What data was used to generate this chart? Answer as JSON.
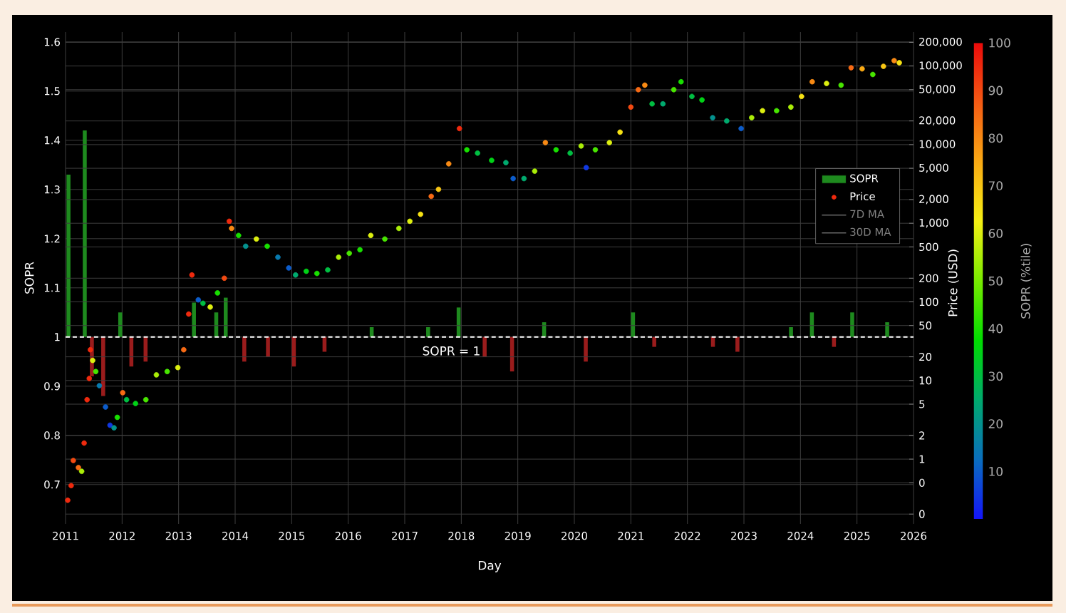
{
  "chart_data": {
    "type": "scatter",
    "xlabel": "Day",
    "ylabel": "SOPR",
    "y2label": "Price (USD)",
    "clabel": "SOPR (%tile)",
    "xlim": [
      "2011-01-01",
      "2026-01-01"
    ],
    "xticks": [
      "2011",
      "2012",
      "2013",
      "2014",
      "2015",
      "2016",
      "2017",
      "2018",
      "2019",
      "2020",
      "2021",
      "2022",
      "2023",
      "2024",
      "2025",
      "2026"
    ],
    "ylim": [
      0.62,
      1.62
    ],
    "yticks": [
      0.7,
      0.8,
      0.9,
      1,
      1.1,
      1.2,
      1.3,
      1.4,
      1.5,
      1.6
    ],
    "log": "y2",
    "y2lim": [
      0.15,
      270000
    ],
    "y2ticks": [
      {
        "value": 0.2,
        "label": "0"
      },
      {
        "value": 0.5,
        "label": "0"
      },
      1,
      2,
      5,
      10,
      20,
      50,
      100,
      200,
      500,
      {
        "value": 1000,
        "label": "1,000"
      },
      {
        "value": 2000,
        "label": "2,000"
      },
      {
        "value": 5000,
        "label": "5,000"
      },
      {
        "value": 10000,
        "label": "10,000"
      },
      {
        "value": 20000,
        "label": "20,000"
      },
      {
        "value": 50000,
        "label": "50,000"
      },
      {
        "value": 100000,
        "label": "100,000"
      },
      {
        "value": 200000,
        "label": "200,000"
      }
    ],
    "clim": [
      0,
      100
    ],
    "cticks": [
      10,
      20,
      30,
      40,
      50,
      60,
      70,
      80,
      90,
      100
    ],
    "grid": true,
    "legend": "right",
    "marker": "circle",
    "ref_lines": [
      {
        "axis": "y",
        "value": 1,
        "label": "SOPR = 1",
        "color": "#ffffff",
        "line_style": "dashed"
      }
    ],
    "series": [
      {
        "name": "SOPR",
        "type": "bar",
        "color": "#1e8a1e",
        "x": [
          "2011-01-20",
          "2011-05-05",
          "2011-06-20",
          "2011-09-01",
          "2011-12-20",
          "2012-03-01",
          "2012-06-01",
          "2013-04-10",
          "2013-09-01",
          "2013-11-01",
          "2014-03-01",
          "2014-08-01",
          "2015-01-15",
          "2015-08-01",
          "2016-06-01",
          "2017-06-01",
          "2017-12-15",
          "2018-06-01",
          "2018-11-25",
          "2019-06-20",
          "2020-03-15",
          "2021-01-15",
          "2021-06-01",
          "2022-06-15",
          "2022-11-20",
          "2023-11-01",
          "2024-03-15",
          "2024-08-05",
          "2024-12-01",
          "2025-07-15"
        ],
        "base": [
          1,
          1,
          1,
          1,
          1,
          1,
          1,
          1,
          1,
          1,
          1,
          1,
          1,
          1,
          1,
          1,
          1,
          1,
          1,
          1,
          1,
          1,
          1,
          1,
          1,
          1,
          1,
          1,
          1,
          1
        ],
        "values": [
          0.33,
          0.42,
          -0.08,
          -0.12,
          0.05,
          -0.06,
          -0.05,
          0.07,
          0.05,
          0.08,
          -0.05,
          -0.04,
          -0.06,
          -0.03,
          0.02,
          0.02,
          0.06,
          -0.04,
          -0.07,
          0.03,
          -0.05,
          0.05,
          -0.02,
          -0.02,
          -0.03,
          0.02,
          0.05,
          -0.02,
          0.05,
          0.03
        ],
        "colors": [
          "#1e8a1e",
          "#1e8a1e",
          "#9a1c1c",
          "#9a1c1c",
          "#1e8a1e",
          "#9a1c1c",
          "#9a1c1c",
          "#1e8a1e",
          "#1e8a1e",
          "#1e8a1e",
          "#9a1c1c",
          "#9a1c1c",
          "#9a1c1c",
          "#9a1c1c",
          "#1e8a1e",
          "#1e8a1e",
          "#1e8a1e",
          "#9a1c1c",
          "#9a1c1c",
          "#1e8a1e",
          "#9a1c1c",
          "#1e8a1e",
          "#9a1c1c",
          "#9a1c1c",
          "#9a1c1c",
          "#1e8a1e",
          "#1e8a1e",
          "#9a1c1c",
          "#1e8a1e",
          "#1e8a1e"
        ]
      },
      {
        "name": "Price",
        "axis": "y2",
        "x": [
          "2011-01-15",
          "2011-02-06",
          "2011-02-20",
          "2011-03-25",
          "2011-04-15",
          "2011-05-01",
          "2011-05-20",
          "2011-06-03",
          "2011-06-10",
          "2011-06-25",
          "2011-07-15",
          "2011-08-07",
          "2011-09-16",
          "2011-10-15",
          "2011-11-10",
          "2011-12-01",
          "2012-01-05",
          "2012-01-30",
          "2012-03-28",
          "2012-06-03",
          "2012-08-10",
          "2012-10-19",
          "2012-12-27",
          "2013-02-03",
          "2013-03-07",
          "2013-03-28",
          "2013-05-08",
          "2013-06-07",
          "2013-07-24",
          "2013-09-09",
          "2013-10-23",
          "2013-11-24",
          "2013-12-09",
          "2014-01-23",
          "2014-03-10",
          "2014-05-18",
          "2014-07-27",
          "2014-10-04",
          "2014-12-13",
          "2015-01-26",
          "2015-04-05",
          "2015-06-13",
          "2015-08-22",
          "2015-10-31",
          "2016-01-08",
          "2016-03-17",
          "2016-05-26",
          "2016-08-25",
          "2016-11-24",
          "2017-02-03",
          "2017-04-13",
          "2017-06-21",
          "2017-08-07",
          "2017-10-12",
          "2017-12-20",
          "2018-02-06",
          "2018-04-16",
          "2018-07-16",
          "2018-10-16",
          "2018-12-02",
          "2019-02-10",
          "2019-04-20",
          "2019-06-28",
          "2019-09-05",
          "2019-12-05",
          "2020-02-14",
          "2020-03-18",
          "2020-05-16",
          "2020-08-15",
          "2020-10-23",
          "2021-01-01",
          "2021-02-18",
          "2021-04-01",
          "2021-05-18",
          "2021-07-27",
          "2021-10-05",
          "2021-11-21",
          "2022-01-30",
          "2022-04-05",
          "2022-06-13",
          "2022-09-12",
          "2022-12-14",
          "2023-02-20",
          "2023-05-01",
          "2023-07-31",
          "2023-10-31",
          "2024-01-08",
          "2024-03-17",
          "2024-06-18",
          "2024-09-20",
          "2024-11-24",
          "2025-02-03",
          "2025-04-13",
          "2025-06-21",
          "2025-08-29",
          "2025-10-01"
        ],
        "values": [
          0.3,
          0.46,
          0.96,
          0.78,
          0.7,
          1.6,
          5.7,
          10.6,
          24.6,
          18,
          13,
          8.6,
          4.6,
          2.7,
          2.5,
          3.4,
          7,
          5.7,
          5.1,
          5.7,
          11.8,
          13,
          14.6,
          24.6,
          70,
          220,
          106,
          96,
          86,
          130,
          200,
          1060,
          860,
          700,
          510,
          630,
          510,
          370,
          270,
          220,
          245,
          230,
          255,
          370,
          415,
          460,
          700,
          630,
          860,
          1060,
          1300,
          2200,
          2700,
          5700,
          16000,
          8600,
          7800,
          6300,
          5900,
          3700,
          3700,
          4600,
          10600,
          8600,
          7800,
          9600,
          5100,
          8600,
          10600,
          14400,
          30000,
          50000,
          57000,
          33000,
          33000,
          50000,
          63000,
          41000,
          37000,
          22000,
          20000,
          16000,
          22000,
          27000,
          27000,
          30000,
          41000,
          63000,
          60000,
          57000,
          95000,
          92000,
          78000,
          99000,
          117000,
          110000
        ],
        "colors": [
          "#ef2a0e",
          "#ef2a0e",
          "#f34a12",
          "#f66a14",
          "#aaed08",
          "#ef2a0e",
          "#ef2a0e",
          "#ef2a0e",
          "#ef2a0e",
          "#dcef10",
          "#48e500",
          "#087aae",
          "#0c5cca",
          "#1038e2",
          "#04928e",
          "#18df00",
          "#f66a14",
          "#00be42",
          "#00d216",
          "#48e500",
          "#aaed08",
          "#48e500",
          "#dcef10",
          "#f66a14",
          "#ef2a0e",
          "#ef2a0e",
          "#0c5cca",
          "#00be42",
          "#dcef10",
          "#18df00",
          "#f34a12",
          "#ef2a0e",
          "#f88a14",
          "#18df00",
          "#04928e",
          "#dcef10",
          "#18df00",
          "#087aae",
          "#0c5cca",
          "#00aa6e",
          "#00d216",
          "#18df00",
          "#00be42",
          "#aaed08",
          "#48e500",
          "#18df00",
          "#dcef10",
          "#48e500",
          "#aaed08",
          "#dcef10",
          "#f6e214",
          "#f66a14",
          "#f8c614",
          "#f88a14",
          "#ef2a0e",
          "#18df00",
          "#00be42",
          "#00d216",
          "#00aa6e",
          "#0c5cca",
          "#00aa6e",
          "#aaed08",
          "#f88a14",
          "#18df00",
          "#00be42",
          "#aaed08",
          "#1038e2",
          "#48e500",
          "#dcef10",
          "#f6e214",
          "#f34a12",
          "#f66a14",
          "#f88a14",
          "#00be42",
          "#00aa6e",
          "#48e500",
          "#18df00",
          "#00be42",
          "#00d216",
          "#04928e",
          "#00aa6e",
          "#0c5cca",
          "#aaed08",
          "#dcef10",
          "#48e500",
          "#aaed08",
          "#f6e214",
          "#f88a14",
          "#dcef10",
          "#48e500",
          "#f66a14",
          "#faaa14",
          "#48e500",
          "#f8c614",
          "#f88a14",
          "#f6e214"
        ]
      },
      {
        "name": "7D MA",
        "type": "line",
        "axis": "y2",
        "color": "#666666"
      },
      {
        "name": "30D MA",
        "type": "line",
        "axis": "y2",
        "color": "#666666"
      }
    ]
  }
}
